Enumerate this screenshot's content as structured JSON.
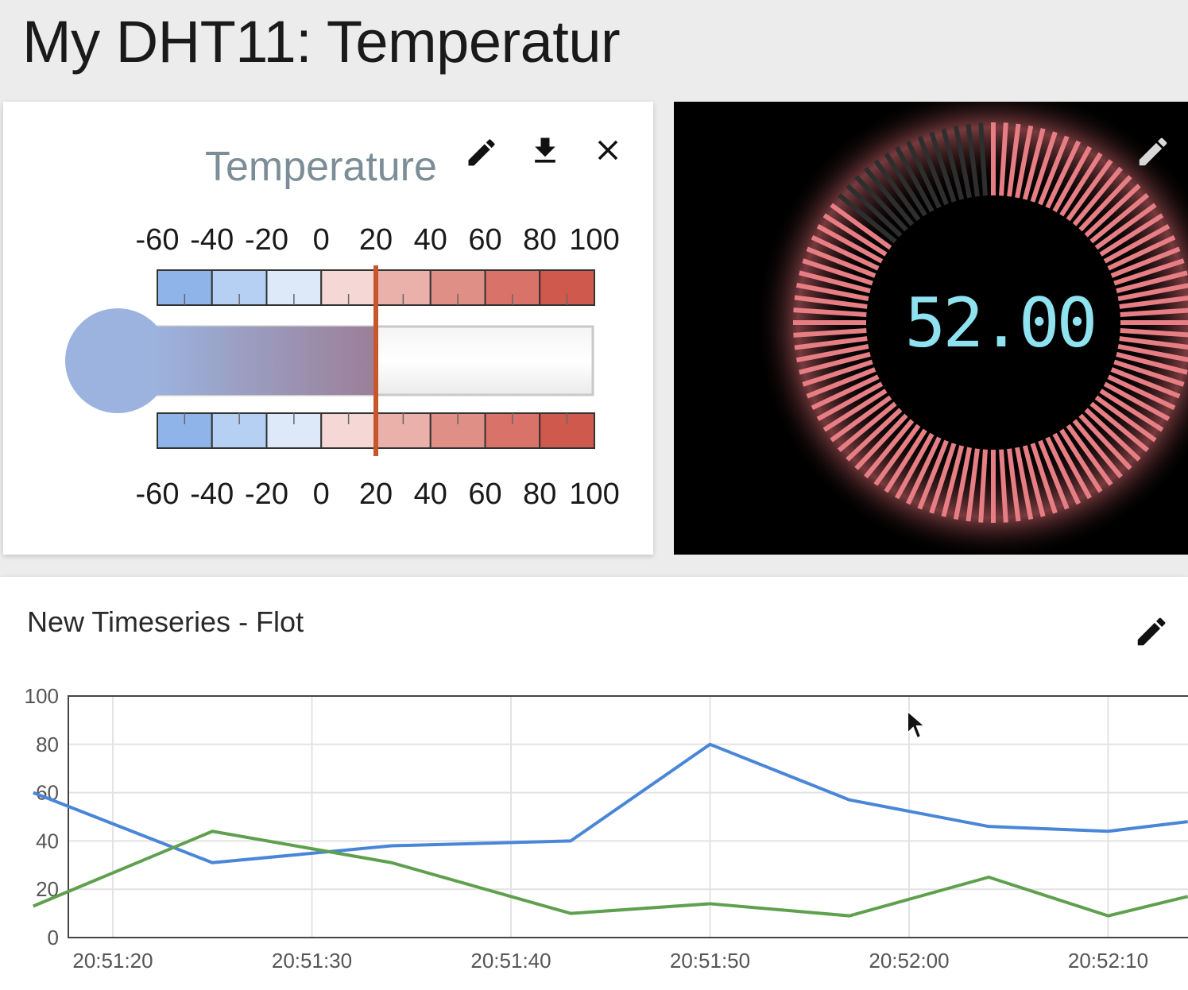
{
  "dashboard": {
    "title": "My DHT11: Temperatur"
  },
  "thermometer_widget": {
    "title": "Temperature",
    "scale_labels": [
      "-60",
      "-40",
      "-20",
      "0",
      "20",
      "40",
      "60",
      "80",
      "100"
    ],
    "scale_min": -60,
    "scale_max": 100,
    "value": 20,
    "icons": [
      "edit-icon",
      "download-icon",
      "close-icon"
    ]
  },
  "digital_gauge_widget": {
    "value_display": "52.00",
    "value": 52,
    "min": 0,
    "max": 100,
    "icons": [
      "edit-icon"
    ],
    "colors": {
      "active": "#e67e84",
      "inactive": "#2e2e2e",
      "digits": "#8fe3f0"
    }
  },
  "timeseries_widget": {
    "title": "New Timeseries - Flot",
    "icons": [
      "edit-icon"
    ],
    "chart_data": {
      "type": "line",
      "x": [
        "20:51:16",
        "20:51:25",
        "20:51:34",
        "20:51:43",
        "20:51:50",
        "20:51:57",
        "20:52:04",
        "20:52:10",
        "20:52:14"
      ],
      "x_ticks": [
        "20:51:20",
        "20:51:30",
        "20:51:40",
        "20:51:50",
        "20:52:00",
        "20:52:10"
      ],
      "y_ticks": [
        "0",
        "20",
        "40",
        "60",
        "80",
        "100"
      ],
      "ylim": [
        0,
        100
      ],
      "grid": true,
      "series": [
        {
          "color": "#4a86d8",
          "values": [
            60,
            31,
            38,
            40,
            80,
            57,
            46,
            44,
            48
          ]
        },
        {
          "color": "#5fa04e",
          "values": [
            13,
            44,
            31,
            10,
            14,
            9,
            25,
            9,
            17
          ]
        }
      ]
    }
  }
}
